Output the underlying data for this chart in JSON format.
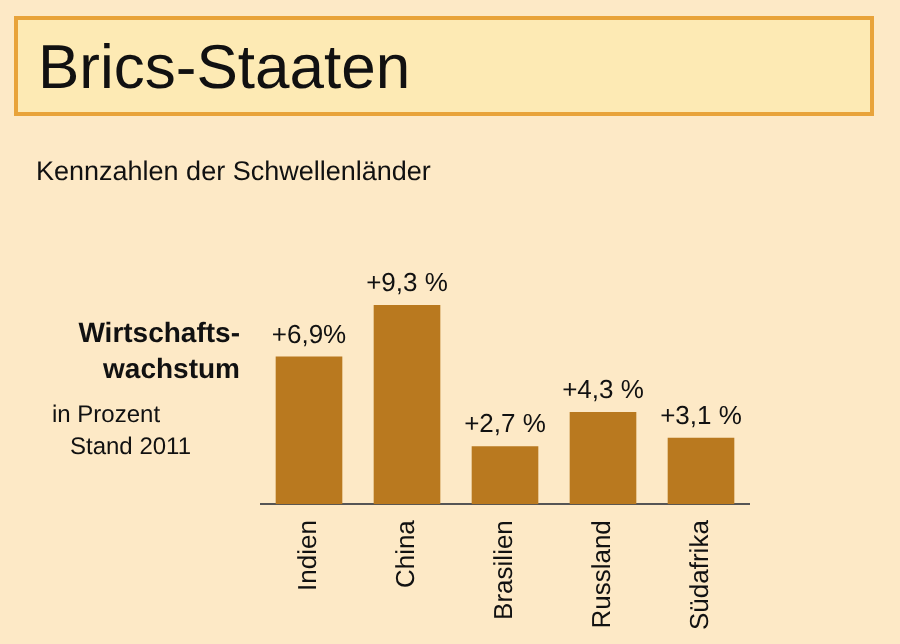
{
  "chart_data": {
    "type": "bar",
    "title": "Brics-Staaten",
    "subtitle": "Kennzahlen der Schwellenländer",
    "ylabel": "Wirtschafts-wachstum",
    "annotations": [
      "in Prozent",
      "Stand 2011"
    ],
    "categories": [
      "Indien",
      "China",
      "Brasilien",
      "Russland",
      "Südafrika"
    ],
    "values": [
      6.9,
      9.3,
      2.7,
      4.3,
      3.1
    ],
    "value_labels": [
      "+6,9%",
      "+9,3 %",
      "+2,7 %",
      "+4,3 %",
      "+3,1 %"
    ],
    "color": "#b9791f",
    "grid": false,
    "legend": false
  }
}
